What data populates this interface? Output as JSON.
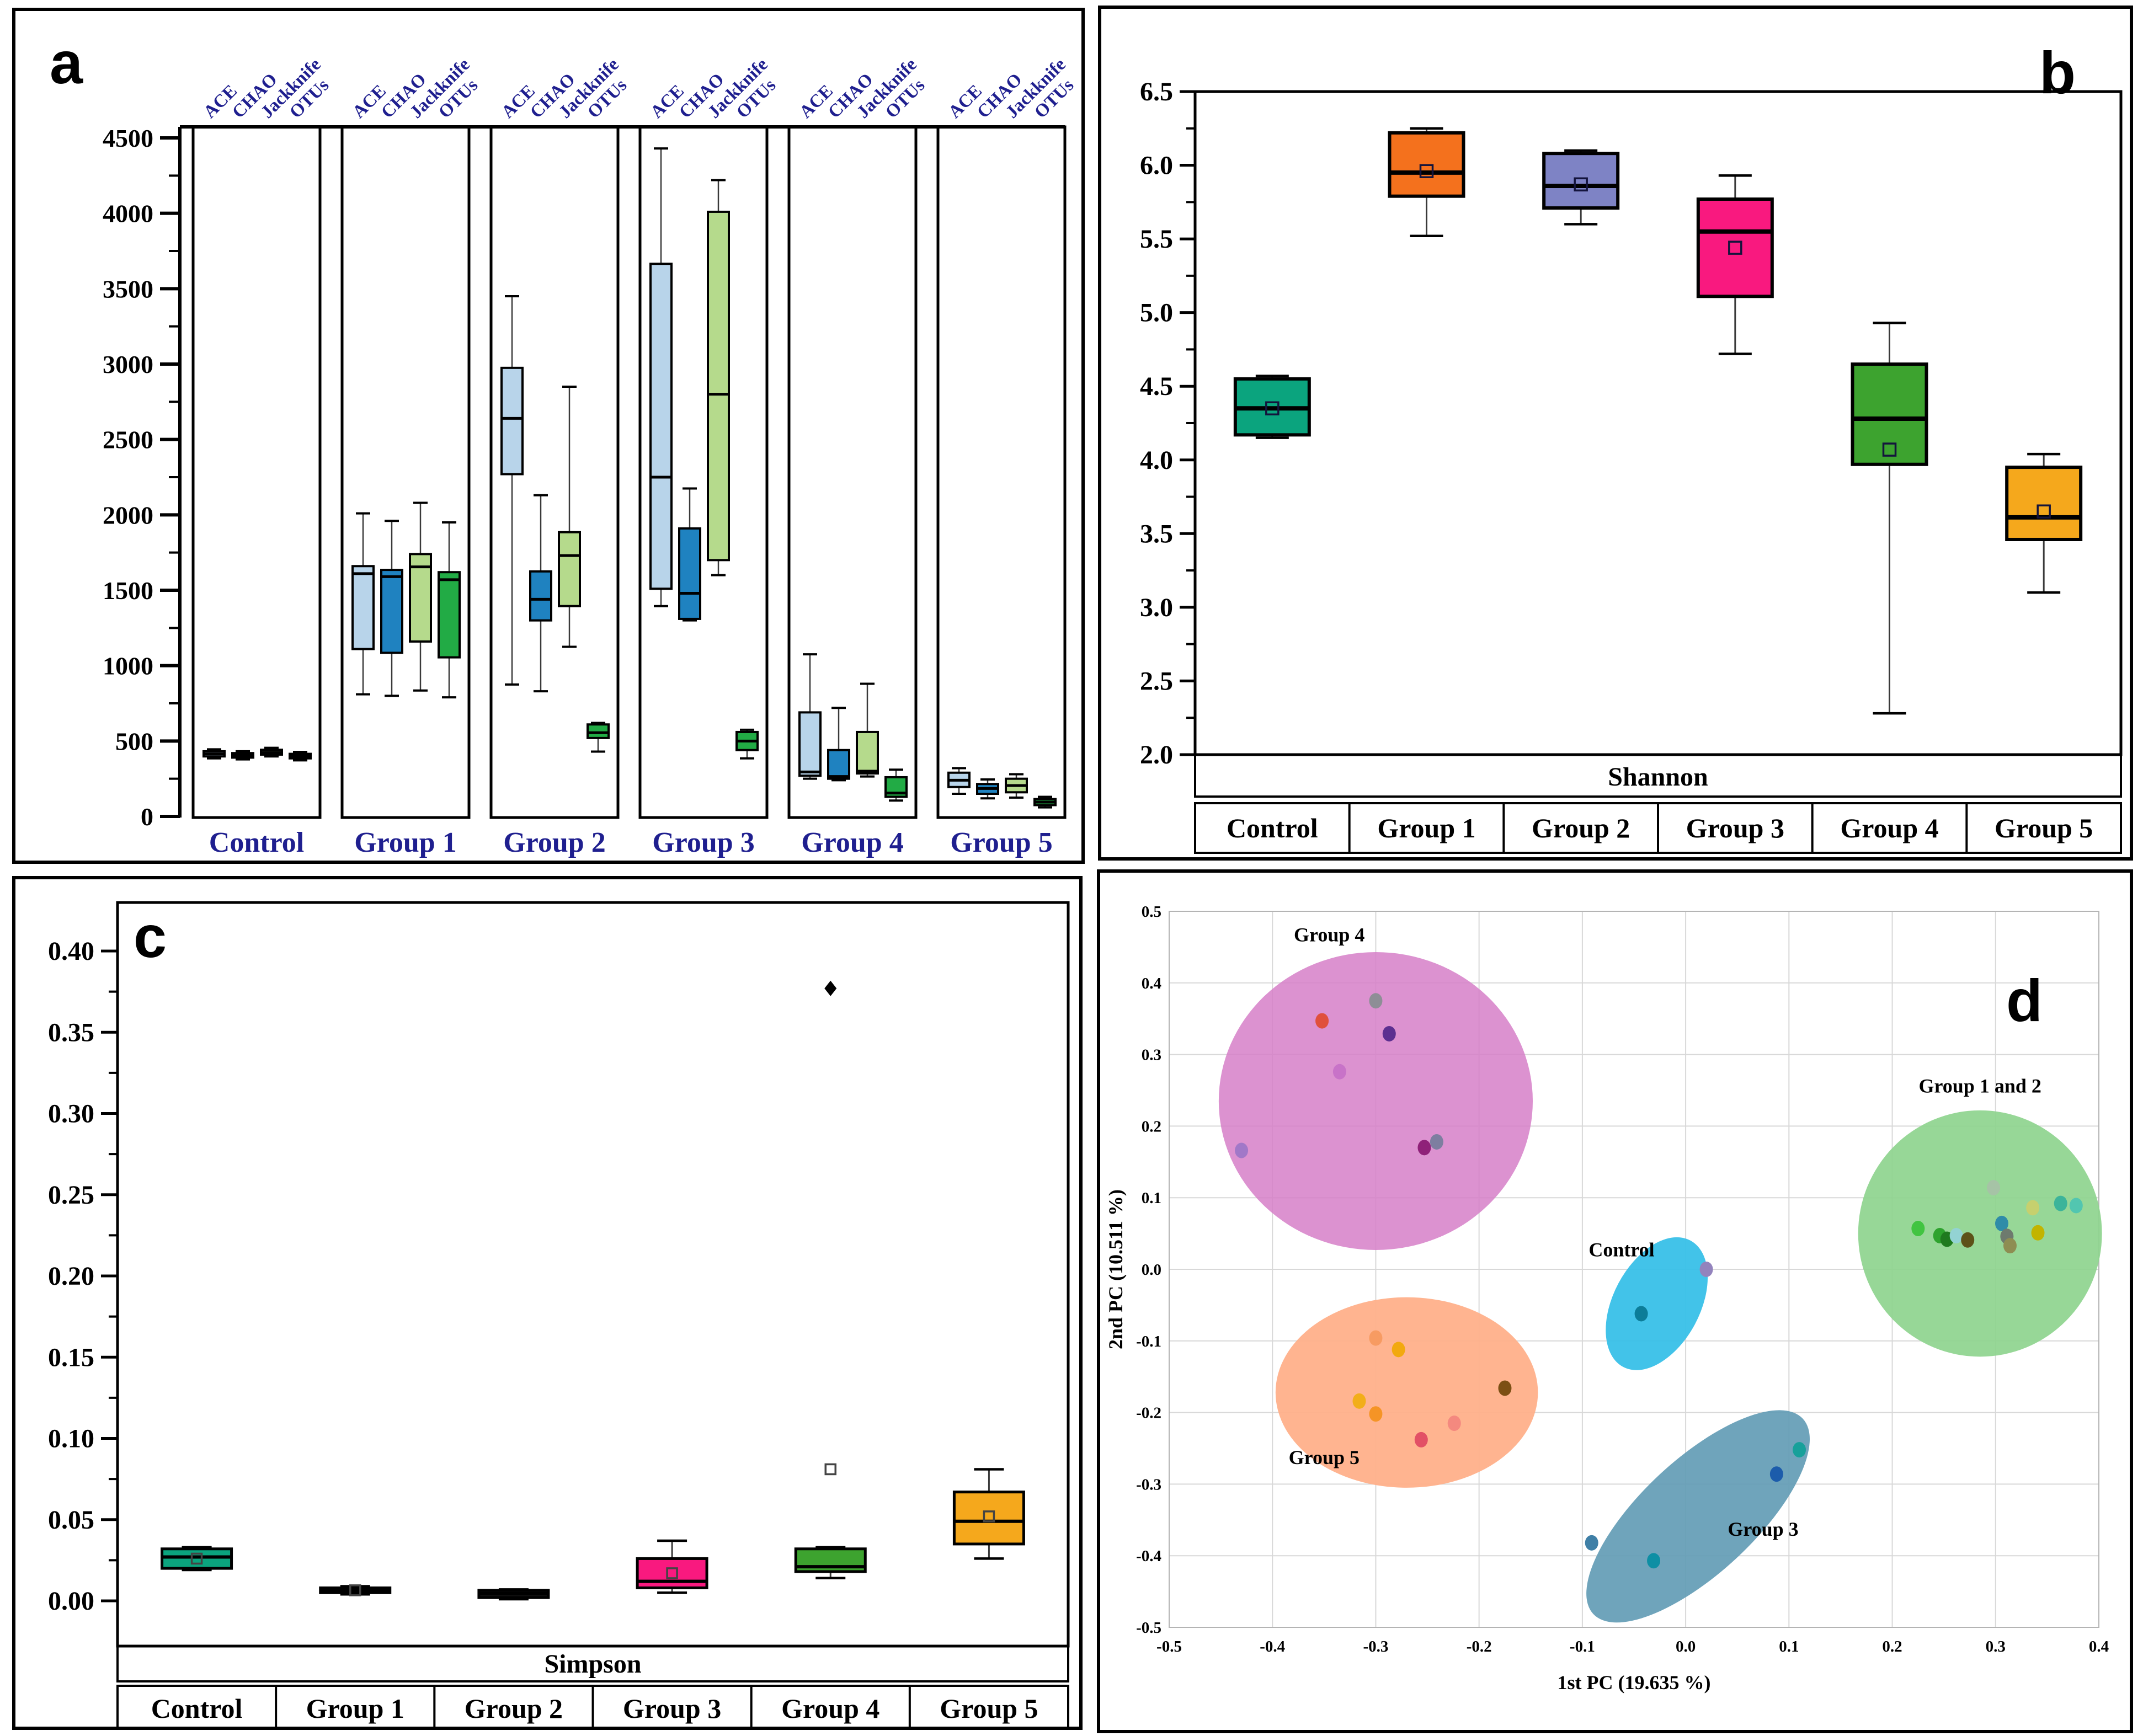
{
  "chart_data": [
    {
      "type": "box",
      "panel_label": "a",
      "metrics": [
        "ACE",
        "CHAO",
        "Jackknife",
        "OTUs"
      ],
      "metric_colors": [
        "#b8d4ea",
        "#1f82c0",
        "#b5da8c",
        "#22ab45"
      ],
      "label_color": "#1f1f8f",
      "ylim": [
        0,
        4570
      ],
      "y_ticks": [
        0,
        500,
        1000,
        1500,
        2000,
        2500,
        3000,
        3500,
        4000,
        4500
      ],
      "groups": [
        {
          "name": "Control",
          "boxes": [
            [
              385,
              398,
              415,
              432,
              445
            ],
            [
              378,
              390,
              405,
              420,
              432
            ],
            [
              398,
              410,
              425,
              442,
              455
            ],
            [
              372,
              385,
              400,
              415,
              428
            ]
          ]
        },
        {
          "name": "Group 1",
          "boxes": [
            [
              810,
              1110,
              1610,
              1660,
              2010
            ],
            [
              800,
              1085,
              1590,
              1635,
              1960
            ],
            [
              835,
              1160,
              1655,
              1740,
              2080
            ],
            [
              790,
              1055,
              1570,
              1620,
              1950
            ]
          ]
        },
        {
          "name": "Group 2",
          "boxes": [
            [
              875,
              2270,
              2640,
              2975,
              3450
            ],
            [
              830,
              1300,
              1440,
              1625,
              2130
            ],
            [
              1125,
              1395,
              1730,
              1885,
              2850
            ],
            [
              430,
              520,
              555,
              610,
              620
            ]
          ]
        },
        {
          "name": "Group 3",
          "boxes": [
            [
              1395,
              1510,
              2250,
              3665,
              4430
            ],
            [
              1300,
              1310,
              1480,
              1910,
              2175
            ],
            [
              1600,
              1700,
              2800,
              4010,
              4220
            ],
            [
              385,
              440,
              500,
              560,
              575
            ]
          ]
        },
        {
          "name": "Group 4",
          "boxes": [
            [
              250,
              270,
              295,
              690,
              1075
            ],
            [
              240,
              250,
              265,
              440,
              720
            ],
            [
              265,
              285,
              300,
              560,
              880
            ],
            [
              105,
              130,
              155,
              260,
              310
            ]
          ]
        },
        {
          "name": "Group 5",
          "boxes": [
            [
              150,
              195,
              240,
              290,
              320
            ],
            [
              120,
              150,
              185,
              215,
              245
            ],
            [
              125,
              160,
              205,
              250,
              280
            ],
            [
              60,
              75,
              95,
              115,
              130
            ]
          ]
        }
      ]
    },
    {
      "type": "box",
      "panel_label": "b",
      "axis_title": "Shannon",
      "ylim": [
        2.0,
        6.5
      ],
      "y_ticks": [
        "6.5",
        "6.0",
        "5.5",
        "5.0",
        "4.5",
        "4.0",
        "3.5",
        "3.0",
        "2.5",
        "2.0"
      ],
      "y_tick_values": [
        6.5,
        6.0,
        5.5,
        5.0,
        4.5,
        4.0,
        3.5,
        3.0,
        2.5,
        2.0
      ],
      "categories": [
        "Control",
        "Group 1",
        "Group 2",
        "Group 3",
        "Group 4",
        "Group 5"
      ],
      "series": [
        {
          "name": "Control",
          "color": "#0ba47e",
          "lo": 4.15,
          "q1": 4.17,
          "med": 4.35,
          "q3": 4.55,
          "hi": 4.57,
          "mean": 4.35
        },
        {
          "name": "Group 1",
          "color": "#f4711d",
          "lo": 5.52,
          "q1": 5.79,
          "med": 5.95,
          "q3": 6.22,
          "hi": 6.25,
          "mean": 5.96
        },
        {
          "name": "Group 2",
          "color": "#7e83c5",
          "lo": 5.6,
          "q1": 5.71,
          "med": 5.86,
          "q3": 6.08,
          "hi": 6.1,
          "mean": 5.87
        },
        {
          "name": "Group 3",
          "color": "#f9197f",
          "lo": 4.72,
          "q1": 5.11,
          "med": 5.55,
          "q3": 5.77,
          "hi": 5.93,
          "mean": 5.44
        },
        {
          "name": "Group 4",
          "color": "#3da32f",
          "lo": 2.28,
          "q1": 3.97,
          "med": 4.28,
          "q3": 4.65,
          "hi": 4.93,
          "mean": 4.07
        },
        {
          "name": "Group 5",
          "color": "#f5a81c",
          "lo": 3.1,
          "q1": 3.46,
          "med": 3.61,
          "q3": 3.95,
          "hi": 4.04,
          "mean": 3.65
        }
      ]
    },
    {
      "type": "box",
      "panel_label": "c",
      "axis_title": "Simpson",
      "ylim": [
        0.0,
        0.4
      ],
      "y_ticks": [
        "0.40",
        "0.35",
        "0.30",
        "0.25",
        "0.20",
        "0.15",
        "0.10",
        "0.05",
        "0.00"
      ],
      "y_tick_values": [
        0.4,
        0.35,
        0.3,
        0.25,
        0.2,
        0.15,
        0.1,
        0.05,
        0.0
      ],
      "categories": [
        "Control",
        "Group 1",
        "Group 2",
        "Group 3",
        "Group 4",
        "Group 5"
      ],
      "series": [
        {
          "name": "Control",
          "color": "#0ba47e",
          "lo": 0.019,
          "q1": 0.02,
          "med": 0.027,
          "q3": 0.032,
          "hi": 0.033,
          "mean": 0.026
        },
        {
          "name": "Group 1",
          "color": "#111111",
          "lo": 0.004,
          "q1": 0.005,
          "med": 0.0065,
          "q3": 0.008,
          "hi": 0.009,
          "mean": 0.0065
        },
        {
          "name": "Group 2",
          "color": "#111111",
          "lo": 0.001,
          "q1": 0.002,
          "med": 0.0045,
          "q3": 0.0065,
          "hi": 0.007
        },
        {
          "name": "Group 3",
          "color": "#f9197f",
          "lo": 0.005,
          "q1": 0.008,
          "med": 0.012,
          "q3": 0.026,
          "hi": 0.037,
          "mean": 0.017
        },
        {
          "name": "Group 4",
          "color": "#3da32f",
          "lo": 0.014,
          "q1": 0.018,
          "med": 0.021,
          "q3": 0.032,
          "hi": 0.033,
          "mean": 0.081,
          "outliers": [
            {
              "v": 0.377,
              "shape": "diamond"
            }
          ]
        },
        {
          "name": "Group 5",
          "color": "#f5a81c",
          "lo": 0.026,
          "q1": 0.035,
          "med": 0.049,
          "q3": 0.067,
          "hi": 0.081,
          "mean": 0.052
        }
      ]
    },
    {
      "type": "scatter",
      "panel_label": "d",
      "xlabel": "1st PC (19.635 %)",
      "ylabel": "2nd PC (10.511 %)",
      "xlim": [
        -0.5,
        0.4
      ],
      "ylim": [
        -0.5,
        0.5
      ],
      "x_ticks": [
        "-0.5",
        "-0.4",
        "-0.3",
        "-0.2",
        "-0.1",
        "0.0",
        "0.1",
        "0.2",
        "0.3",
        "0.4"
      ],
      "x_tick_values": [
        -0.5,
        -0.4,
        -0.3,
        -0.2,
        -0.1,
        0.0,
        0.1,
        0.2,
        0.3,
        0.4
      ],
      "y_ticks": [
        "0.5",
        "0.4",
        "0.3",
        "0.2",
        "0.1",
        "0.0",
        "-0.1",
        "-0.2",
        "-0.3",
        "-0.4",
        "-0.5"
      ],
      "y_tick_values": [
        0.5,
        0.4,
        0.3,
        0.2,
        0.1,
        0.0,
        -0.1,
        -0.2,
        -0.3,
        -0.4,
        -0.5
      ],
      "groups": [
        {
          "name": "Group 4",
          "label_pos": [
            -0.345,
            0.458
          ],
          "ellipse": {
            "cx": -0.3,
            "cy": 0.235,
            "rx": 0.152,
            "ry": 0.208,
            "rot": 0,
            "fill": "#d67fc8",
            "opacity": 0.85
          },
          "points": [
            [
              -0.3,
              0.375,
              "#8e8e96"
            ],
            [
              -0.352,
              0.347,
              "#e0503c"
            ],
            [
              -0.287,
              0.329,
              "#5c2f90"
            ],
            [
              -0.335,
              0.276,
              "#c873c8"
            ],
            [
              -0.43,
              0.166,
              "#a178c8"
            ],
            [
              -0.253,
              0.17,
              "#8f2179"
            ],
            [
              -0.241,
              0.178,
              "#7e7ea0"
            ]
          ]
        },
        {
          "name": "Group 5",
          "label_pos": [
            -0.35,
            -0.272
          ],
          "ellipse": {
            "cx": -0.27,
            "cy": -0.172,
            "rx": 0.127,
            "ry": 0.133,
            "rot": 0,
            "fill": "#ffb08a",
            "opacity": 0.95
          },
          "points": [
            [
              -0.3,
              -0.096,
              "#f79b62"
            ],
            [
              -0.278,
              -0.112,
              "#f2a90f"
            ],
            [
              -0.175,
              -0.166,
              "#7c4f14"
            ],
            [
              -0.316,
              -0.184,
              "#f2ae19"
            ],
            [
              -0.3,
              -0.202,
              "#f59426"
            ],
            [
              -0.224,
              -0.215,
              "#f4897f"
            ],
            [
              -0.256,
              -0.238,
              "#e25066"
            ]
          ]
        },
        {
          "name": "Control",
          "label_pos": [
            -0.062,
            0.018
          ],
          "ellipse": {
            "cx": -0.028,
            "cy": -0.048,
            "rx": 0.042,
            "ry": 0.1,
            "rot": 28,
            "fill": "#38c0e8",
            "opacity": 0.95
          },
          "points": [
            [
              0.02,
              0.0,
              "#9383bd"
            ],
            [
              -0.043,
              -0.062,
              "#0c7d99"
            ]
          ]
        },
        {
          "name": "Group 3",
          "label_pos": [
            0.075,
            -0.372
          ],
          "ellipse": {
            "cx": 0.012,
            "cy": -0.345,
            "rx": 0.055,
            "ry": 0.2,
            "rot": 47,
            "fill": "#639cb5",
            "opacity": 0.92
          },
          "points": [
            [
              0.11,
              -0.252,
              "#17a09a"
            ],
            [
              0.088,
              -0.286,
              "#1c5cab"
            ],
            [
              -0.091,
              -0.382,
              "#3f7fa6"
            ],
            [
              -0.031,
              -0.407,
              "#0e8fa4"
            ]
          ]
        },
        {
          "name": "Group 1 and 2",
          "label_pos": [
            0.285,
            0.247
          ],
          "ellipse": {
            "cx": 0.285,
            "cy": 0.05,
            "rx": 0.118,
            "ry": 0.172,
            "rot": 0,
            "fill": "#8ed48e",
            "opacity": 0.92
          },
          "points": [
            [
              0.225,
              0.057,
              "#41c441"
            ],
            [
              0.246,
              0.047,
              "#2ea32e"
            ],
            [
              0.253,
              0.042,
              "#1f7a1f"
            ],
            [
              0.262,
              0.047,
              "#93d3d3"
            ],
            [
              0.273,
              0.041,
              "#5d5118"
            ],
            [
              0.298,
              0.114,
              "#a6c3a6"
            ],
            [
              0.306,
              0.064,
              "#2f8ca8"
            ],
            [
              0.311,
              0.046,
              "#6e7a6e"
            ],
            [
              0.314,
              0.033,
              "#8e8e52"
            ],
            [
              0.336,
              0.086,
              "#c6d06e"
            ],
            [
              0.341,
              0.051,
              "#c2b400"
            ],
            [
              0.363,
              0.092,
              "#3cb49a"
            ],
            [
              0.378,
              0.089,
              "#52c6b0"
            ]
          ]
        }
      ]
    }
  ]
}
